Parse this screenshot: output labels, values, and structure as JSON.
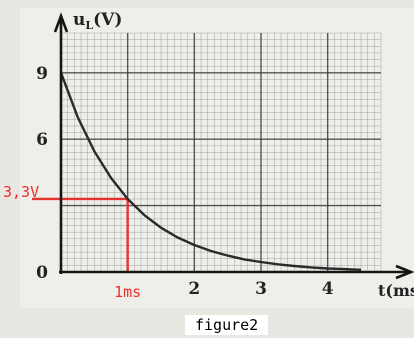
{
  "chart_data": {
    "type": "line",
    "ylabel": "u_L(V)",
    "ylabel_base": "u",
    "ylabel_sub": "L",
    "ylabel_unit": "(V)",
    "xlabel": "t(ms",
    "xlim": [
      0,
      4.8
    ],
    "ylim": [
      0,
      10.8
    ],
    "x_ticks": [
      {
        "value": 2,
        "label": "2"
      },
      {
        "value": 3,
        "label": "3"
      },
      {
        "value": 4,
        "label": "4"
      }
    ],
    "y_ticks": [
      {
        "value": 0,
        "label": "0"
      },
      {
        "value": 6,
        "label": "6"
      },
      {
        "value": 9,
        "label": "9"
      }
    ],
    "grid": true,
    "series": [
      {
        "x": [
          0,
          0.25,
          0.5,
          0.75,
          1,
          1.25,
          1.5,
          1.75,
          2,
          2.25,
          2.5,
          2.75,
          3,
          3.25,
          3.5,
          3.75,
          4,
          4.25,
          4.5
        ],
        "y": [
          9,
          7.0,
          5.46,
          4.25,
          3.3,
          2.57,
          2.0,
          1.56,
          1.22,
          0.95,
          0.74,
          0.57,
          0.45,
          0.35,
          0.27,
          0.21,
          0.16,
          0.13,
          0.1
        ]
      }
    ],
    "annotation": {
      "x": 1,
      "y": 3.3,
      "x_label": "1ms",
      "y_label": "3,3V",
      "color": "#e8322f"
    }
  },
  "caption": "figure2",
  "colors": {
    "paper": "#eeeeea",
    "grid": "#3a3a3a",
    "curve": "#2a2a2a",
    "axis": "#151515",
    "annotation": "#e8322f"
  }
}
